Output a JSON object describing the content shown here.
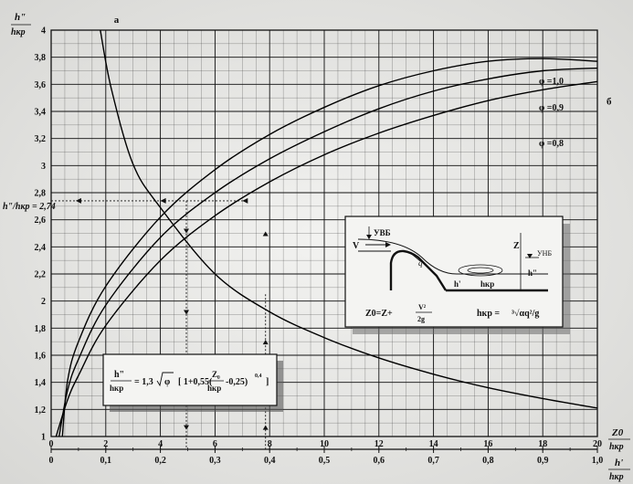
{
  "chart_data": {
    "type": "line",
    "title": "",
    "y_axis_label": {
      "num": "h\"",
      "den": "hкр"
    },
    "x_axis_label": {
      "num": "Z0",
      "den": "hкр"
    },
    "x2_axis_label": {
      "num": "h'",
      "den": "hкр"
    },
    "y_ticks": [
      "1",
      "1,2",
      "1,4",
      "1,6",
      "1,8",
      "2",
      "2,2",
      "2,4",
      "2,6",
      "2,8",
      "3",
      "3,2",
      "3,4",
      "3,6",
      "3,8",
      "4"
    ],
    "y_tick_values": [
      1,
      1.2,
      1.4,
      1.6,
      1.8,
      2,
      2.2,
      2.4,
      2.6,
      2.8,
      3,
      3.2,
      3.4,
      3.6,
      3.8,
      4
    ],
    "x_ticks": [
      "0",
      "2",
      "4",
      "6",
      "8",
      "10",
      "12",
      "14",
      "16",
      "18",
      "20"
    ],
    "x_tick_values": [
      0,
      2,
      4,
      6,
      8,
      10,
      12,
      14,
      16,
      18,
      20
    ],
    "x2_ticks": [
      "0",
      "0,1",
      "0,2",
      "0,3",
      "0,4",
      "0,5",
      "0,6",
      "0,7",
      "0,8",
      "0,9",
      "1,0"
    ],
    "x2_tick_values": [
      0,
      0.1,
      0.2,
      0.3,
      0.4,
      0.5,
      0.6,
      0.7,
      0.8,
      0.9,
      1.0
    ],
    "xlim": [
      0,
      20
    ],
    "ylim": [
      1,
      4
    ],
    "x2lim": [
      0,
      1
    ],
    "grid": true,
    "curve_a_label": "a",
    "curve_b_label": "б",
    "reference_label": "h\"/hкр = 2,74",
    "reference_value": 2.74,
    "series": [
      {
        "name": "φ =1,0",
        "phi": 1.0,
        "x": [
          0.41,
          0.6,
          1,
          2,
          4,
          6,
          8,
          10,
          12,
          14,
          16,
          18,
          20
        ],
        "y": [
          1,
          1.41,
          1.7,
          2.11,
          2.62,
          2.97,
          3.23,
          3.43,
          3.59,
          3.7,
          3.77,
          3.79,
          3.77
        ]
      },
      {
        "name": "φ =0,9",
        "phi": 0.9,
        "x": [
          0.29,
          0.6,
          1,
          2,
          4,
          6,
          8,
          10,
          12,
          14,
          16,
          18,
          20
        ],
        "y": [
          1,
          1.34,
          1.57,
          1.97,
          2.47,
          2.8,
          3.05,
          3.25,
          3.42,
          3.55,
          3.64,
          3.7,
          3.72
        ]
      },
      {
        "name": "φ =0,8",
        "phi": 0.8,
        "x": [
          0.18,
          0.6,
          1,
          2,
          4,
          6,
          8,
          10,
          12,
          14,
          16,
          18,
          20
        ],
        "y": [
          1,
          1.27,
          1.45,
          1.82,
          2.3,
          2.63,
          2.88,
          3.08,
          3.24,
          3.37,
          3.48,
          3.56,
          3.62
        ]
      },
      {
        "name": "a",
        "x2": [
          0.09,
          0.11,
          0.15,
          0.2,
          0.3,
          0.4,
          0.5,
          0.6,
          0.7,
          0.8,
          0.9,
          1.0
        ],
        "y": [
          4.0,
          3.57,
          3.01,
          2.69,
          2.2,
          1.92,
          1.73,
          1.58,
          1.46,
          1.36,
          1.28,
          1.21
        ]
      }
    ],
    "formula_box": {
      "lhs_num": "h\"",
      "lhs_den": "hкр",
      "rhs_prefix": "= 1,3",
      "sqrt_arg": "φ",
      "bracket_open": "[ 1+0,55(",
      "frac_num": "Z₀",
      "frac_den": "hкр",
      "bracket_tail": "-0,25)",
      "exponent": "0,4",
      "bracket_close": "]"
    },
    "inset": {
      "label_uvb": "УВБ",
      "label_v": "V",
      "label_q": "q",
      "label_z": "Z",
      "label_unb": "УНБ",
      "label_h2": "h\"",
      "label_h1": "h'",
      "label_hkr": "hкр",
      "formula_z0_prefix": "Z0=Z+",
      "formula_z0_num": "V²",
      "formula_z0_den": "2g",
      "formula_hkr_prefix": "hкр =",
      "formula_hkr_root": "³√αq²/g"
    }
  }
}
